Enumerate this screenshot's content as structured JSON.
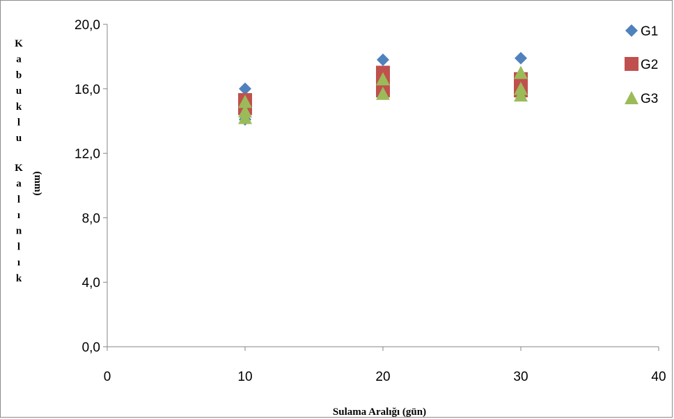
{
  "chart_data": {
    "type": "scatter",
    "title": "",
    "xlabel": "Sulama Aralığı (gün)",
    "ylabel": "Kabuklu Kalınlık",
    "ylabel_unit": "(mm)",
    "xlim": [
      0,
      40
    ],
    "ylim": [
      0,
      20
    ],
    "x_ticks": [
      "0",
      "10",
      "20",
      "30",
      "40"
    ],
    "y_ticks": [
      "0,0",
      "4,0",
      "8,0",
      "12,0",
      "16,0",
      "20,0"
    ],
    "grid": false,
    "legend_position": "right",
    "series": [
      {
        "name": "G1",
        "marker": "diamond",
        "color": "#4F81BD",
        "points": [
          [
            10,
            16.0
          ],
          [
            10,
            14.1
          ],
          [
            20,
            17.8
          ],
          [
            20,
            16.5
          ],
          [
            30,
            17.9
          ],
          [
            30,
            16.8
          ]
        ]
      },
      {
        "name": "G2",
        "marker": "square",
        "color": "#C0504D",
        "points": [
          [
            10,
            15.3
          ],
          [
            10,
            14.8
          ],
          [
            20,
            17.0
          ],
          [
            20,
            16.6
          ],
          [
            20,
            15.9
          ],
          [
            30,
            16.6
          ],
          [
            30,
            16.2
          ],
          [
            30,
            15.9
          ]
        ]
      },
      {
        "name": "G3",
        "marker": "triangle",
        "color": "#9BBB59",
        "points": [
          [
            10,
            15.2
          ],
          [
            10,
            14.6
          ],
          [
            10,
            14.2
          ],
          [
            20,
            16.6
          ],
          [
            20,
            15.7
          ],
          [
            30,
            17.0
          ],
          [
            30,
            16.0
          ],
          [
            30,
            15.6
          ]
        ]
      }
    ]
  }
}
